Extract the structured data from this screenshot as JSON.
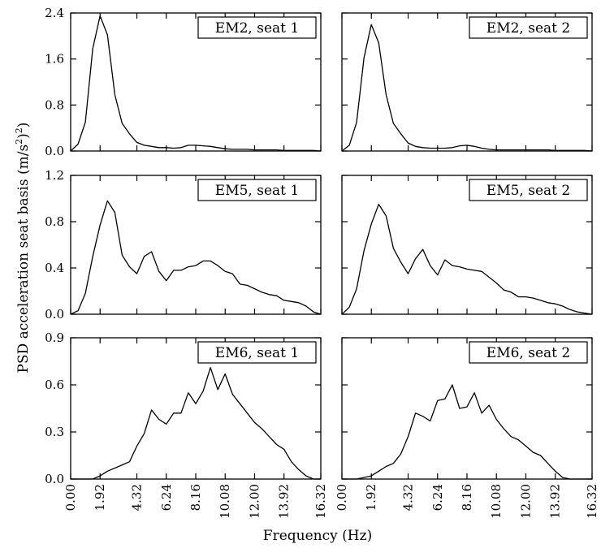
{
  "chart_data": {
    "type": "line",
    "ylabel": "PSD acceleration seat basis (m/s²)²)",
    "xlabel": "Frequency (Hz)",
    "x_ticks": [
      "0.00",
      "1.92",
      "4.32",
      "6.24",
      "8.16",
      "10.08",
      "12.00",
      "13.92",
      "16.32"
    ],
    "xlim": [
      0,
      16.32
    ],
    "grid": false,
    "legend_position": "top-right",
    "panels": [
      {
        "label": "EM2, seat 1",
        "ylim": [
          0,
          2.4
        ],
        "y_ticks": [
          "0.0",
          "0.8",
          "1.6",
          "2.4"
        ],
        "x": [
          0,
          0.48,
          0.96,
          1.44,
          1.92,
          2.4,
          2.88,
          3.36,
          3.84,
          4.32,
          4.8,
          5.28,
          5.76,
          6.24,
          6.72,
          7.2,
          7.68,
          8.16,
          8.64,
          9.12,
          9.6,
          10.08,
          10.56,
          11.04,
          11.52,
          12.0,
          12.48,
          12.96,
          13.44,
          13.92,
          14.4,
          14.88,
          15.36,
          15.84,
          16.32
        ],
        "y": [
          0.0,
          0.12,
          0.5,
          1.78,
          2.35,
          2.02,
          0.98,
          0.48,
          0.3,
          0.15,
          0.1,
          0.08,
          0.06,
          0.06,
          0.05,
          0.06,
          0.1,
          0.1,
          0.09,
          0.08,
          0.06,
          0.04,
          0.03,
          0.03,
          0.03,
          0.02,
          0.02,
          0.02,
          0.02,
          0.01,
          0.01,
          0.01,
          0.01,
          0.01,
          0.0
        ]
      },
      {
        "label": "EM2, seat 2",
        "ylim": [
          0,
          2.4
        ],
        "y_ticks": [
          "0.0",
          "0.8",
          "1.6",
          "2.4"
        ],
        "x": [
          0,
          0.48,
          0.96,
          1.44,
          1.92,
          2.4,
          2.88,
          3.36,
          3.84,
          4.32,
          4.8,
          5.28,
          5.76,
          6.24,
          6.72,
          7.2,
          7.68,
          8.16,
          8.64,
          9.12,
          9.6,
          10.08,
          10.56,
          11.04,
          11.52,
          12.0,
          12.48,
          12.96,
          13.44,
          13.92,
          14.4,
          14.88,
          15.36,
          15.84,
          16.32
        ],
        "y": [
          0.0,
          0.1,
          0.5,
          1.62,
          2.2,
          1.88,
          0.98,
          0.48,
          0.3,
          0.14,
          0.08,
          0.06,
          0.05,
          0.05,
          0.05,
          0.06,
          0.09,
          0.1,
          0.08,
          0.05,
          0.03,
          0.02,
          0.02,
          0.02,
          0.02,
          0.02,
          0.02,
          0.02,
          0.02,
          0.01,
          0.01,
          0.01,
          0.01,
          0.01,
          0.0
        ]
      },
      {
        "label": "EM5, seat 1",
        "ylim": [
          0,
          1.2
        ],
        "y_ticks": [
          "0.0",
          "0.4",
          "0.8",
          "1.2"
        ],
        "x": [
          0,
          0.48,
          0.96,
          1.44,
          1.92,
          2.4,
          2.88,
          3.36,
          3.84,
          4.32,
          4.8,
          5.28,
          5.76,
          6.24,
          6.72,
          7.2,
          7.68,
          8.16,
          8.64,
          9.12,
          9.6,
          10.08,
          10.56,
          11.04,
          11.52,
          12.0,
          12.48,
          12.96,
          13.44,
          13.92,
          14.4,
          14.88,
          15.36,
          15.84,
          16.32
        ],
        "y": [
          0.0,
          0.03,
          0.18,
          0.5,
          0.77,
          0.98,
          0.88,
          0.51,
          0.41,
          0.35,
          0.5,
          0.54,
          0.37,
          0.29,
          0.38,
          0.38,
          0.41,
          0.42,
          0.46,
          0.46,
          0.42,
          0.37,
          0.35,
          0.26,
          0.25,
          0.22,
          0.19,
          0.17,
          0.16,
          0.12,
          0.11,
          0.1,
          0.07,
          0.02,
          0.0
        ]
      },
      {
        "label": "EM5, seat 2",
        "ylim": [
          0,
          1.2
        ],
        "y_ticks": [
          "0.0",
          "0.4",
          "0.8",
          "1.2"
        ],
        "x": [
          0,
          0.48,
          0.96,
          1.44,
          1.92,
          2.4,
          2.88,
          3.36,
          3.84,
          4.32,
          4.8,
          5.28,
          5.76,
          6.24,
          6.72,
          7.2,
          7.68,
          8.16,
          8.64,
          9.12,
          9.6,
          10.08,
          10.56,
          11.04,
          11.52,
          12.0,
          12.48,
          12.96,
          13.44,
          13.92,
          14.4,
          14.88,
          15.36,
          15.84,
          16.32
        ],
        "y": [
          0.0,
          0.06,
          0.22,
          0.55,
          0.78,
          0.95,
          0.85,
          0.57,
          0.45,
          0.35,
          0.48,
          0.56,
          0.42,
          0.34,
          0.47,
          0.42,
          0.41,
          0.39,
          0.38,
          0.37,
          0.32,
          0.27,
          0.21,
          0.19,
          0.15,
          0.15,
          0.14,
          0.12,
          0.1,
          0.09,
          0.07,
          0.04,
          0.02,
          0.01,
          0.0
        ]
      },
      {
        "label": "EM6, seat 1",
        "ylim": [
          0,
          0.9
        ],
        "y_ticks": [
          "0.0",
          "0.3",
          "0.6",
          "0.9"
        ],
        "x": [
          0,
          0.48,
          0.96,
          1.44,
          1.92,
          2.4,
          2.88,
          3.36,
          3.84,
          4.32,
          4.8,
          5.28,
          5.76,
          6.24,
          6.72,
          7.2,
          7.68,
          8.16,
          8.64,
          9.12,
          9.6,
          10.08,
          10.56,
          11.04,
          11.52,
          12.0,
          12.48,
          12.96,
          13.44,
          13.92,
          14.4,
          14.88,
          15.36,
          15.84,
          16.32
        ],
        "y": [
          0.0,
          0.0,
          0.0,
          0.0,
          0.02,
          0.05,
          0.07,
          0.09,
          0.11,
          0.21,
          0.29,
          0.44,
          0.38,
          0.35,
          0.42,
          0.42,
          0.55,
          0.48,
          0.56,
          0.71,
          0.57,
          0.67,
          0.54,
          0.48,
          0.42,
          0.36,
          0.32,
          0.27,
          0.22,
          0.19,
          0.11,
          0.06,
          0.02,
          0.0,
          0.0
        ]
      },
      {
        "label": "EM6, seat 2",
        "ylim": [
          0,
          0.9
        ],
        "y_ticks": [
          "0.0",
          "0.3",
          "0.6",
          "0.9"
        ],
        "x": [
          0,
          0.48,
          0.96,
          1.44,
          1.92,
          2.4,
          2.88,
          3.36,
          3.84,
          4.32,
          4.8,
          5.28,
          5.76,
          6.24,
          6.72,
          7.2,
          7.68,
          8.16,
          8.64,
          9.12,
          9.6,
          10.08,
          10.56,
          11.04,
          11.52,
          12.0,
          12.48,
          12.96,
          13.44,
          13.92,
          14.4,
          14.88,
          15.36,
          15.84,
          16.32
        ],
        "y": [
          0.0,
          0.0,
          0.0,
          0.01,
          0.02,
          0.05,
          0.08,
          0.1,
          0.16,
          0.27,
          0.42,
          0.4,
          0.37,
          0.5,
          0.51,
          0.6,
          0.45,
          0.46,
          0.55,
          0.42,
          0.47,
          0.38,
          0.32,
          0.27,
          0.25,
          0.21,
          0.17,
          0.15,
          0.1,
          0.05,
          0.01,
          0.0,
          0.0,
          0.0,
          0.0
        ]
      }
    ]
  }
}
